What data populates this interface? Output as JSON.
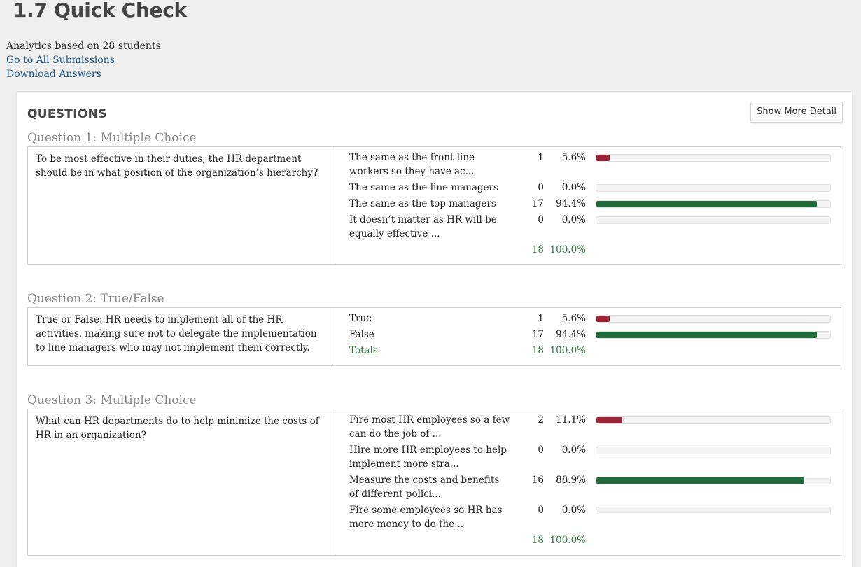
{
  "page": {
    "title": "1.7 Quick Check",
    "analytics_text": "Analytics based on 28 students",
    "link_submissions": "Go to All Submissions",
    "link_download": "Download Answers"
  },
  "panel": {
    "heading": "QUESTIONS",
    "detail_button": "Show More Detail"
  },
  "colors": {
    "wrong": "#9b2335",
    "correct": "#1f6b3a",
    "total_text": "#2c7a3a"
  },
  "questions": [
    {
      "title": "Question 1: Multiple Choice",
      "text": "To be most effective in their duties, the HR department should be in what position of the organization’s hierarchy?",
      "answers": [
        {
          "label": "The same as the front line workers so they have ac...",
          "count": "1",
          "pct": "5.6%",
          "fraction": 0.056,
          "correct": false
        },
        {
          "label": "The same as the line managers",
          "count": "0",
          "pct": "0.0%",
          "fraction": 0,
          "correct": false
        },
        {
          "label": "The same as the top managers",
          "count": "17",
          "pct": "94.4%",
          "fraction": 0.944,
          "correct": true
        },
        {
          "label": "It doesn’t matter as HR will be equally effective ...",
          "count": "0",
          "pct": "0.0%",
          "fraction": 0,
          "correct": false
        }
      ],
      "total": {
        "label": "",
        "count": "18",
        "pct": "100.0%"
      }
    },
    {
      "title": "Question 2: True/False",
      "text": "True or False: HR needs to implement all of the HR activities, making sure not to delegate the implementation to line managers who may not implement them correctly.",
      "answers": [
        {
          "label": "True",
          "count": "1",
          "pct": "5.6%",
          "fraction": 0.056,
          "correct": false
        },
        {
          "label": "False",
          "count": "17",
          "pct": "94.4%",
          "fraction": 0.944,
          "correct": true
        }
      ],
      "total": {
        "label": "Totals",
        "count": "18",
        "pct": "100.0%"
      }
    },
    {
      "title": "Question 3: Multiple Choice",
      "text": "What can HR departments do to help minimize the costs of HR in an organization?",
      "answers": [
        {
          "label": "Fire most HR employees so a few can do the job of ...",
          "count": "2",
          "pct": "11.1%",
          "fraction": 0.111,
          "correct": false
        },
        {
          "label": "Hire more HR employees to help implement more stra...",
          "count": "0",
          "pct": "0.0%",
          "fraction": 0,
          "correct": false
        },
        {
          "label": "Measure the costs and benefits of different polici...",
          "count": "16",
          "pct": "88.9%",
          "fraction": 0.889,
          "correct": true
        },
        {
          "label": "Fire some employees so HR has more money to do the...",
          "count": "0",
          "pct": "0.0%",
          "fraction": 0,
          "correct": false
        }
      ],
      "total": {
        "label": "",
        "count": "18",
        "pct": "100.0%"
      }
    }
  ]
}
